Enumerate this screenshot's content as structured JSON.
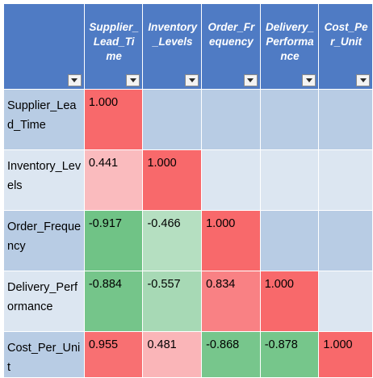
{
  "columns": [
    "Supplier_Lead_Time",
    "Inventory_Levels",
    "Order_Frequency",
    "Delivery_Performance",
    "Cost_Per_Unit"
  ],
  "header_labels": [
    "Supplier\n_Lead_\nTime",
    "Invento\nry_Level\ns",
    "Order_F\nrequenc\ny",
    "Delivery\n_Perfor\nmance",
    "Cost_Pe\nr_Unit"
  ],
  "rows": [
    {
      "label": "Supplier_Lead_Time",
      "values": [
        "1.000",
        "",
        "",
        "",
        ""
      ]
    },
    {
      "label": "Inventory_Levels",
      "values": [
        "0.441",
        "1.000",
        "",
        "",
        ""
      ]
    },
    {
      "label": "Order_Frequency",
      "values": [
        "-0.917",
        "-0.466",
        "1.000",
        "",
        ""
      ]
    },
    {
      "label": "Delivery_Performance",
      "values": [
        "-0.884",
        "-0.557",
        "0.834",
        "1.000",
        ""
      ]
    },
    {
      "label": "Cost_Per_Unit",
      "values": [
        "0.955",
        "0.481",
        "-0.868",
        "-0.878",
        "1.000"
      ]
    }
  ],
  "colors": {
    "header_bg": "#4f7bc4",
    "row_dark": "#b8cce4",
    "row_light": "#dce6f1",
    "strong_positive": "#f8696b",
    "strong_negative": "#63be7b",
    "neutral": "#fcfcff"
  },
  "icons": {
    "filter_dropdown": "filter-dropdown-icon"
  }
}
